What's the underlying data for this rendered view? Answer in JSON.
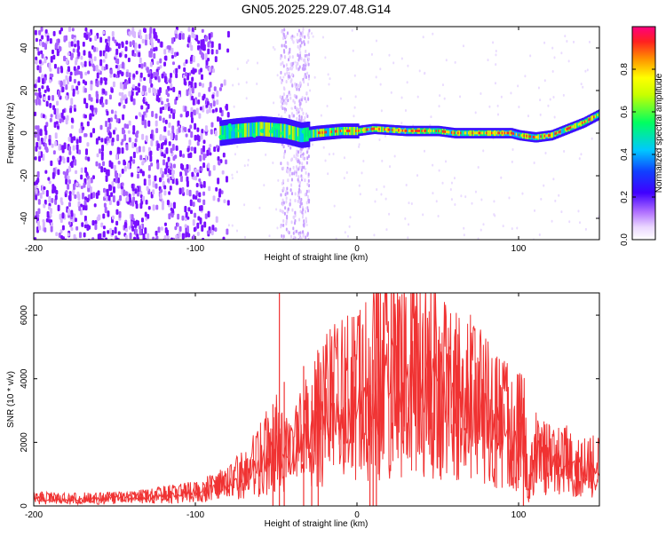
{
  "title": "GN05.2025.229.07.48.G14",
  "colors": {
    "snr_line": "#f03232",
    "colormap": [
      "#ffffff",
      "#e8c8ff",
      "#b070ff",
      "#6a00ff",
      "#1a20ff",
      "#00c8ff",
      "#00ff80",
      "#ffff00",
      "#ff8000",
      "#ff2020",
      "#ff0080"
    ]
  },
  "chart_data": [
    {
      "type": "heatmap",
      "xlabel": "Height of straight line (km)",
      "ylabel": "Frequency (Hz)",
      "xlim": [
        -200,
        150
      ],
      "ylim": [
        -50,
        50
      ],
      "xticks": [
        -200,
        -100,
        0,
        100
      ],
      "yticks": [
        -40,
        -20,
        0,
        20,
        40
      ],
      "colorbar": {
        "label": "Normalized spectral amplitude",
        "range": [
          0,
          1
        ],
        "ticks": [
          "0.0",
          "0.2",
          "0.4",
          "0.6",
          "0.8"
        ]
      },
      "ridge": {
        "height_km": [
          -85,
          -75,
          -60,
          -45,
          -35,
          -25,
          -10,
          0,
          10,
          30,
          50,
          60,
          80,
          95,
          100,
          110,
          120,
          130,
          140,
          150
        ],
        "frequency_hz": [
          0,
          1,
          2,
          1,
          -1,
          0,
          1,
          1,
          2,
          1,
          1,
          0,
          0,
          0,
          -1,
          -2,
          -1,
          2,
          5,
          9
        ]
      },
      "noise_region_km": [
        -200,
        -80
      ],
      "noise_bands_km": [
        [
          -48,
          -38
        ],
        [
          -38,
          -30
        ]
      ]
    },
    {
      "type": "line",
      "xlabel": "Height of straight line (km)",
      "ylabel": "SNR (10 * v/v)",
      "xlim": [
        -200,
        150
      ],
      "ylim": [
        0,
        6700
      ],
      "xticks": [
        -200,
        -100,
        0,
        100
      ],
      "yticks": [
        0,
        2000,
        4000,
        6000
      ],
      "series": [
        {
          "envelope_x": [
            -200,
            -180,
            -160,
            -140,
            -120,
            -100,
            -90,
            -80,
            -70,
            -60,
            -50,
            -45,
            -40,
            -35,
            -30,
            -20,
            -10,
            0,
            10,
            20,
            30,
            40,
            50,
            60,
            70,
            80,
            90,
            100,
            103,
            106,
            110,
            120,
            130,
            140,
            150
          ],
          "envelope_y": [
            250,
            230,
            240,
            260,
            350,
            450,
            550,
            700,
            1000,
            1450,
            2000,
            1700,
            1600,
            2100,
            2500,
            3000,
            3300,
            3500,
            3900,
            4200,
            4400,
            4300,
            4100,
            3800,
            3400,
            3000,
            2600,
            2300,
            2800,
            500,
            1700,
            1600,
            1400,
            1300,
            1200
          ],
          "spikes": [
            {
              "x": -48,
              "y": 6700
            },
            {
              "x": -52,
              "y": 3200
            },
            {
              "x": -45,
              "y": 3900
            },
            {
              "x": -33,
              "y": 4400
            },
            {
              "x": -28,
              "y": 3300
            },
            {
              "x": -24,
              "y": 2800
            },
            {
              "x": 12,
              "y": 6700
            },
            {
              "x": 10,
              "y": 4600
            },
            {
              "x": 8,
              "y": 3800
            },
            {
              "x": 103,
              "y": 3400
            }
          ]
        }
      ]
    }
  ]
}
